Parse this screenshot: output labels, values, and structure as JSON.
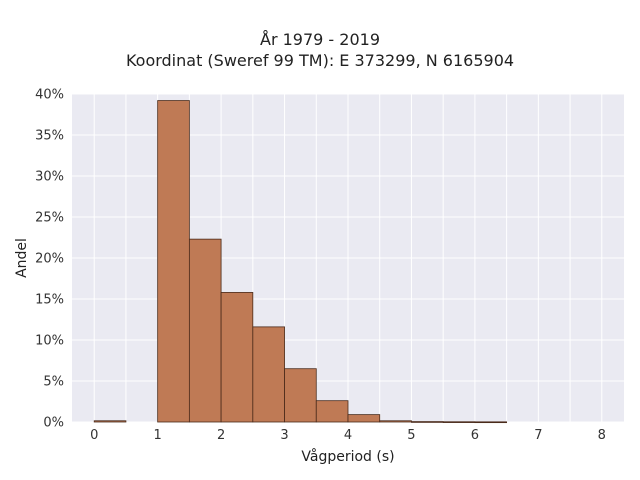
{
  "chart_data": {
    "type": "bar",
    "title": "År 1979 - 2019",
    "subtitle": "Koordinat (Sweref 99 TM): E 373299, N 6165904",
    "xlabel": "Vågperiod (s)",
    "ylabel": "Andel",
    "xlim": [
      -0.35,
      8.35
    ],
    "ylim": [
      0,
      0.4
    ],
    "x_ticks": [
      0,
      1,
      2,
      3,
      4,
      5,
      6,
      7,
      8
    ],
    "y_ticks": [
      0,
      0.05,
      0.1,
      0.15,
      0.2,
      0.25,
      0.3,
      0.35,
      0.4
    ],
    "y_tick_labels": [
      "0%",
      "5%",
      "10%",
      "15%",
      "20%",
      "25%",
      "30%",
      "35%",
      "40%"
    ],
    "bin_width": 0.5,
    "bins": [
      {
        "x0": 0.0,
        "value": 0.0015
      },
      {
        "x0": 0.5,
        "value": 0.0
      },
      {
        "x0": 1.0,
        "value": 0.392
      },
      {
        "x0": 1.5,
        "value": 0.223
      },
      {
        "x0": 2.0,
        "value": 0.158
      },
      {
        "x0": 2.5,
        "value": 0.116
      },
      {
        "x0": 3.0,
        "value": 0.065
      },
      {
        "x0": 3.5,
        "value": 0.026
      },
      {
        "x0": 4.0,
        "value": 0.009
      },
      {
        "x0": 4.5,
        "value": 0.0015
      },
      {
        "x0": 5.0,
        "value": 0.0005
      },
      {
        "x0": 5.5,
        "value": 0.0003
      },
      {
        "x0": 6.0,
        "value": 0.0002
      }
    ],
    "grid": true,
    "colors": {
      "bar_fill": "#bf7a55",
      "bar_edge": "#4a2a1a",
      "plot_bg": "#eaeaf2",
      "grid": "#ffffff"
    }
  }
}
